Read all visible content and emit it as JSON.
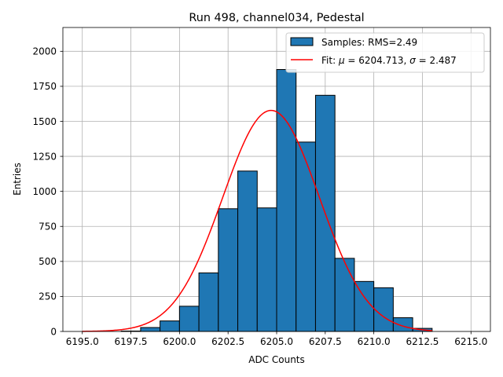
{
  "chart_data": {
    "type": "bar",
    "title": "Run 498, channel034, Pedestal",
    "xlabel": "ADC Counts",
    "ylabel": "Entries",
    "xlim": [
      6194.0,
      6216.0
    ],
    "ylim": [
      0,
      2170
    ],
    "x_ticks": [
      6195.0,
      6197.5,
      6200.0,
      6202.5,
      6205.0,
      6207.5,
      6210.0,
      6212.5,
      6215.0
    ],
    "x_tick_labels": [
      "6195.0",
      "6197.5",
      "6200.0",
      "6202.5",
      "6205.0",
      "6207.5",
      "6210.0",
      "6212.5",
      "6215.0"
    ],
    "y_ticks": [
      0,
      250,
      500,
      750,
      1000,
      1250,
      1500,
      1750,
      2000
    ],
    "y_tick_labels": [
      "0",
      "250",
      "500",
      "750",
      "1000",
      "1250",
      "1500",
      "1750",
      "2000"
    ],
    "grid": true,
    "bin_edges": [
      6197,
      6198,
      6199,
      6200,
      6201,
      6202,
      6203,
      6204,
      6205,
      6206,
      6207,
      6208,
      6209,
      6210,
      6211,
      6212,
      6213
    ],
    "counts": [
      3,
      28,
      75,
      180,
      418,
      876,
      1145,
      882,
      1870,
      1352,
      1686,
      522,
      357,
      312,
      98,
      22
    ],
    "fit": {
      "type": "gaussian",
      "mu": 6204.713,
      "sigma": 2.487,
      "amplitude": 1578
    },
    "series": [
      {
        "name": "Samples: RMS=2.49",
        "kind": "histogram",
        "color": "#1f77b4"
      },
      {
        "name": "Fit: μ = 6204.713, σ = 2.487",
        "kind": "line",
        "color": "#ff0000"
      }
    ],
    "legend": {
      "position": "top-right",
      "samples_label": "Samples: RMS=2.49",
      "fit_prefix": "Fit: ",
      "fit_mu_symbol": "μ",
      "fit_mu_value": " = 6204.713, ",
      "fit_sigma_symbol": "σ",
      "fit_sigma_value": " = 2.487"
    },
    "colors": {
      "bar": "#1f77b4",
      "fit": "#ff0000",
      "grid": "#b0b0b0"
    }
  }
}
